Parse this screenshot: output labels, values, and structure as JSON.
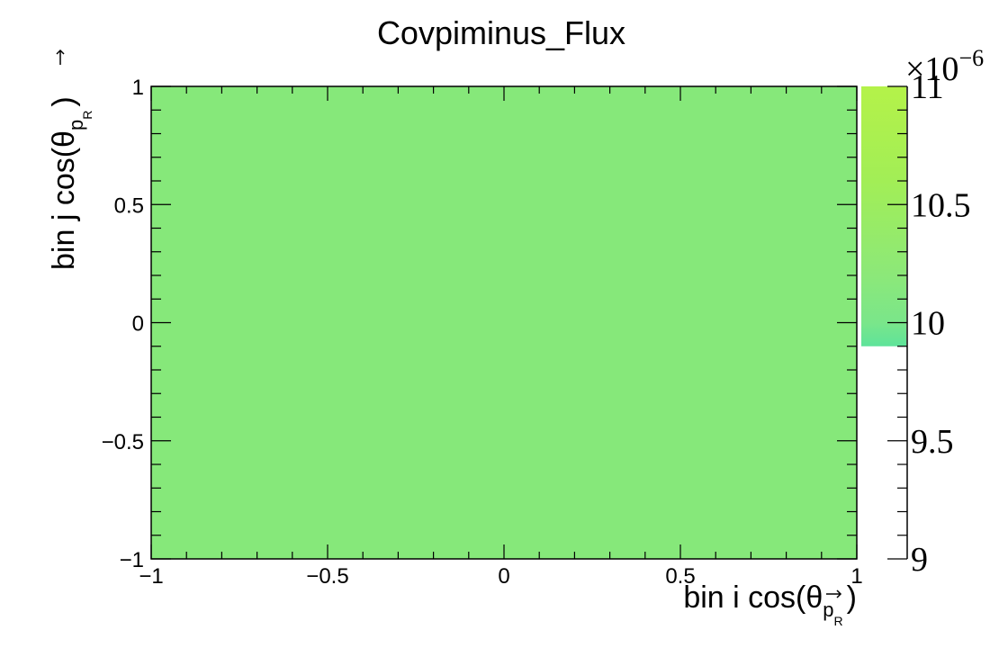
{
  "chart_data": {
    "type": "heatmap",
    "title": "Covpiminus_Flux",
    "xlabel": "bin i cos(θ",
    "ylabel": "bin j cos(θ",
    "axis_label_subscript": "p",
    "axis_label_subsubscript": "R",
    "axis_label_close": ")",
    "xlim": [
      -1,
      1
    ],
    "ylim": [
      -1,
      1
    ],
    "x_ticks": [
      {
        "value": -1,
        "label": "−1"
      },
      {
        "value": -0.5,
        "label": "−0.5"
      },
      {
        "value": 0,
        "label": "0"
      },
      {
        "value": 0.5,
        "label": "0.5"
      },
      {
        "value": 1,
        "label": "1"
      }
    ],
    "y_ticks": [
      {
        "value": -1,
        "label": "−1"
      },
      {
        "value": -0.5,
        "label": "−0.5"
      },
      {
        "value": 0,
        "label": "0"
      },
      {
        "value": 0.5,
        "label": "0.5"
      },
      {
        "value": 1,
        "label": "1"
      }
    ],
    "cells": [
      {
        "x": [
          -1,
          1
        ],
        "y": [
          -1,
          1
        ],
        "value": 1.03e-05,
        "color": "#86e87a"
      }
    ],
    "colorbar": {
      "range": [
        9,
        11
      ],
      "exponent_label": "×10",
      "exponent_power": "−6",
      "ticks": [
        {
          "value": 9,
          "label": "9"
        },
        {
          "value": 9.5,
          "label": "9.5"
        },
        {
          "value": 10,
          "label": "10"
        },
        {
          "value": 10.5,
          "label": "10.5"
        },
        {
          "value": 11,
          "label": "11"
        }
      ],
      "filled_range": [
        9.9,
        11
      ],
      "gradient_stops": [
        {
          "value": 9.9,
          "color": "#5ee39a"
        },
        {
          "value": 10.0,
          "color": "#7ae68a"
        },
        {
          "value": 10.2,
          "color": "#8ce879"
        },
        {
          "value": 10.6,
          "color": "#a2ee56"
        },
        {
          "value": 11.0,
          "color": "#b4f249"
        }
      ]
    },
    "grid": false
  }
}
